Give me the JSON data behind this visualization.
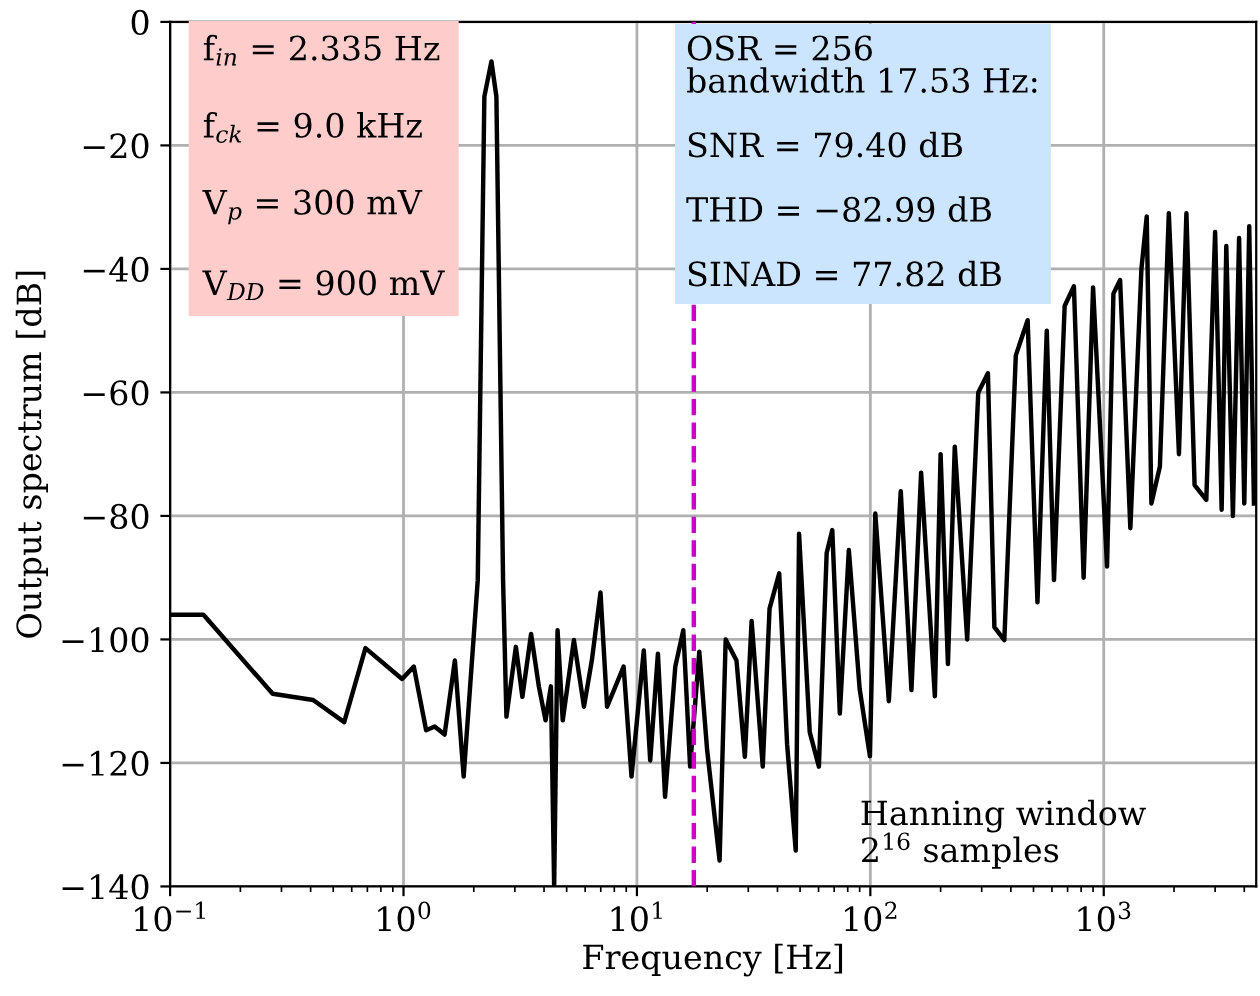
{
  "chart_data": {
    "type": "line",
    "xlabel": "Frequency [Hz]",
    "ylabel": "Output spectrum [dB]",
    "log": "x",
    "grid": true,
    "xlim": [
      0.1,
      4500
    ],
    "ylim": [
      -140,
      0
    ],
    "xticks": [
      {
        "value": 0.1,
        "label": "10$^{−1}$"
      },
      {
        "value": 1,
        "label": "10$^{0}$"
      },
      {
        "value": 10,
        "label": "10$^{1}$"
      },
      {
        "value": 100,
        "label": "10$^{2}$"
      },
      {
        "value": 1000,
        "label": "10$^{3}$"
      }
    ],
    "yticks": [
      {
        "value": -140,
        "label": "−140"
      },
      {
        "value": -120,
        "label": "−120"
      },
      {
        "value": -100,
        "label": "−100"
      },
      {
        "value": -80,
        "label": "−80"
      },
      {
        "value": -60,
        "label": "−60"
      },
      {
        "value": -40,
        "label": "−40"
      },
      {
        "value": -20,
        "label": "−20"
      },
      0
    ],
    "series": [
      {
        "color": "#000000",
        "x": [
          0.1,
          0.139,
          0.275,
          0.41,
          0.557,
          0.687,
          0.986,
          1.107,
          1.25,
          1.36,
          1.5,
          1.66,
          1.81,
          2.08,
          2.22,
          2.38,
          2.5,
          2.67,
          2.76,
          3.03,
          3.23,
          3.52,
          3.8,
          4.06,
          4.28,
          4.42,
          4.57,
          4.81,
          5.37,
          5.93,
          6.41,
          6.98,
          7.45,
          8.77,
          9.48,
          10.7,
          11.4,
          12.3,
          13.2,
          14.6,
          15.8,
          16.9,
          18.5,
          20,
          22.6,
          24,
          26.7,
          29,
          31,
          34.6,
          37,
          40.7,
          44,
          47.9,
          49.5,
          55,
          60.2,
          65,
          68.7,
          74,
          80.9,
          90,
          99.6,
          105,
          120,
          135,
          150,
          165,
          189,
          200,
          215,
          230,
          260,
          290,
          319,
          340,
          375,
          420,
          472,
          520,
          570,
          612,
          680,
          745,
          820,
          900,
          1033,
          1100,
          1175,
          1300,
          1450,
          1528,
          1600,
          1740,
          1900,
          2100,
          2260,
          2450,
          2750,
          3000,
          3200,
          3350,
          3575,
          3800,
          4000,
          4200,
          4400
        ],
        "values": [
          -96,
          -96,
          -108.8,
          -109.8,
          -113.4,
          -101.4,
          -106.4,
          -104.4,
          -114.7,
          -114.1,
          -115.4,
          -103.4,
          -122.2,
          -90.4,
          -12.1,
          -6.4,
          -12.1,
          -90.4,
          -112.5,
          -101.2,
          -109.3,
          -99.1,
          -107.6,
          -113.1,
          -107.6,
          -140,
          -98.5,
          -113.1,
          -100.1,
          -110.9,
          -103.4,
          -92.4,
          -110.9,
          -104.4,
          -122.2,
          -101.8,
          -119.6,
          -102.3,
          -125.5,
          -104.4,
          -98.5,
          -120.6,
          -102,
          -118,
          -135.8,
          -100,
          -103.4,
          -119,
          -97,
          -120.6,
          -95,
          -89.3,
          -117,
          -134.2,
          -82.9,
          -115,
          -120.6,
          -86,
          -82.3,
          -112,
          -85.5,
          -108,
          -118.9,
          -79.6,
          -110,
          -76,
          -108.2,
          -73,
          -109.2,
          -70,
          -104,
          -68.8,
          -100,
          -60,
          -56.9,
          -98,
          -100.1,
          -54,
          -48.3,
          -94,
          -50,
          -90.4,
          -46,
          -42.8,
          -90,
          -43,
          -88.2,
          -44,
          -41.8,
          -82,
          -40,
          -31.5,
          -78,
          -72,
          -31,
          -70,
          -31,
          -75,
          -77.4,
          -34,
          -79,
          -36.3,
          -80,
          -35,
          -78,
          -33.1,
          -78
        ]
      }
    ],
    "ref_lines": [
      {
        "axis": "x",
        "value": 17.53,
        "color": "#cc00cc",
        "line_style": "dashed"
      }
    ],
    "annotations": [
      "f$_{in}$ = 2.335 Hz",
      "f$_{ck}$ = 9.0 kHz",
      "V$_{p}$ = 300 mV",
      "V$_{DD}$ = 900 mV",
      "OSR = 256\nbandwidth 17.53 Hz:",
      "SNR = 79.40 dB",
      "THD = −82.99 dB",
      "SINAD = 77.82 dB",
      "Hanning window\n2$^{16}$ samples"
    ]
  }
}
